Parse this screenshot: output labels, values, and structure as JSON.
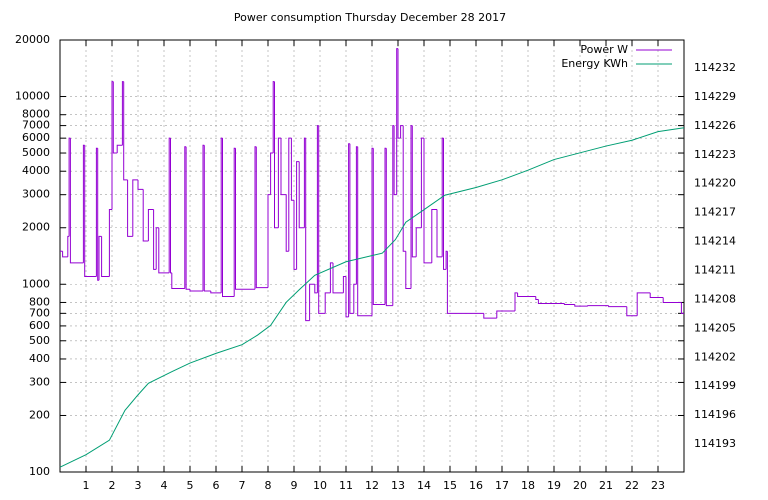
{
  "chart_data": {
    "type": "line",
    "title": "Power consumption Thursday December 28 2017",
    "xlim": [
      0,
      24
    ],
    "xticks": [
      1,
      2,
      3,
      4,
      5,
      6,
      7,
      8,
      9,
      10,
      11,
      12,
      13,
      14,
      15,
      16,
      17,
      18,
      19,
      20,
      21,
      22,
      23
    ],
    "ylim": [
      100,
      20000
    ],
    "yticks": [
      100,
      200,
      300,
      400,
      500,
      600,
      700,
      800,
      1000,
      2000,
      3000,
      4000,
      5000,
      6000,
      7000,
      8000,
      10000,
      20000
    ],
    "ylog": true,
    "y2lim": [
      114190.1,
      114234.9
    ],
    "y2ticks": [
      114193,
      114196,
      114199,
      114202,
      114205,
      114208,
      114211,
      114214,
      114217,
      114220,
      114223,
      114226,
      114229,
      114232
    ],
    "grid": true,
    "legend": "top-right",
    "series": [
      {
        "name": "Power W",
        "color": "#9400d3",
        "step": true,
        "x": [
          0,
          0.1,
          0.3,
          0.35,
          0.4,
          0.9,
          0.95,
          1.4,
          1.45,
          1.5,
          1.6,
          1.9,
          2.0,
          2.05,
          2.2,
          2.4,
          2.45,
          2.6,
          2.8,
          3.0,
          3.2,
          3.4,
          3.6,
          3.7,
          3.8,
          4.2,
          4.25,
          4.3,
          4.8,
          4.85,
          5.0,
          5.5,
          5.55,
          5.8,
          6.2,
          6.25,
          6.7,
          6.75,
          7.5,
          7.55,
          8.0,
          8.1,
          8.2,
          8.25,
          8.4,
          8.5,
          8.7,
          8.8,
          8.9,
          9.0,
          9.1,
          9.2,
          9.4,
          9.45,
          9.6,
          9.8,
          9.9,
          9.95,
          10.2,
          10.4,
          10.5,
          10.9,
          11.0,
          11.1,
          11.15,
          11.3,
          11.4,
          11.45,
          12.0,
          12.05,
          12.5,
          12.55,
          12.8,
          12.85,
          12.95,
          13.0,
          13.1,
          13.2,
          13.3,
          13.5,
          13.55,
          13.7,
          13.9,
          14.0,
          14.3,
          14.5,
          14.7,
          14.75,
          14.85,
          14.9,
          16.3,
          16.8,
          17.5,
          17.6,
          18.3,
          18.4,
          19.4,
          19.8,
          20.3,
          21.1,
          21.8,
          22.2,
          22.7,
          23.2,
          23.9
        ],
        "values": [
          1500,
          1400,
          1800,
          6000,
          1300,
          5500,
          1100,
          5300,
          1050,
          1800,
          1100,
          2500,
          12000,
          5000,
          5500,
          12000,
          3600,
          1800,
          3600,
          3200,
          1700,
          2500,
          1200,
          2000,
          1150,
          6000,
          1150,
          950,
          5400,
          940,
          920,
          5500,
          920,
          900,
          6000,
          860,
          5300,
          940,
          5400,
          960,
          3000,
          5000,
          12000,
          2000,
          6000,
          3000,
          1500,
          6000,
          2800,
          1200,
          4500,
          2000,
          6000,
          640,
          1000,
          900,
          7000,
          700,
          900,
          1300,
          900,
          1100,
          670,
          5600,
          700,
          1000,
          5400,
          680,
          5300,
          780,
          5300,
          770,
          7000,
          3000,
          18000,
          6000,
          7000,
          1500,
          950,
          7000,
          1400,
          2000,
          6000,
          1300,
          2500,
          1400,
          6000,
          1200,
          1500,
          700,
          660,
          720,
          900,
          860,
          830,
          790,
          780,
          765,
          770,
          760,
          680,
          900,
          850,
          800,
          700
        ]
      },
      {
        "name": "Energy KWh",
        "color": "#009e73",
        "axis": "y2",
        "x": [
          0,
          1,
          1.9,
          2.5,
          3,
          3.4,
          4.3,
          5,
          6,
          7,
          7.6,
          8.1,
          8.7,
          9.2,
          9.8,
          11,
          12.4,
          12.9,
          13.3,
          14,
          14.8,
          16,
          17,
          18,
          19,
          20,
          21,
          22,
          23,
          24
        ],
        "values": [
          114190.6,
          114191.9,
          114193.4,
          114196.5,
          114198.1,
          114199.3,
          114200.5,
          114201.4,
          114202.4,
          114203.3,
          114204.3,
          114205.3,
          114207.7,
          114209,
          114210.5,
          114211.9,
          114212.8,
          114214.2,
          114216,
          114217.3,
          114218.8,
          114219.6,
          114220.4,
          114221.4,
          114222.5,
          114223.2,
          114223.9,
          114224.5,
          114225.4,
          114225.8
        ]
      }
    ]
  }
}
